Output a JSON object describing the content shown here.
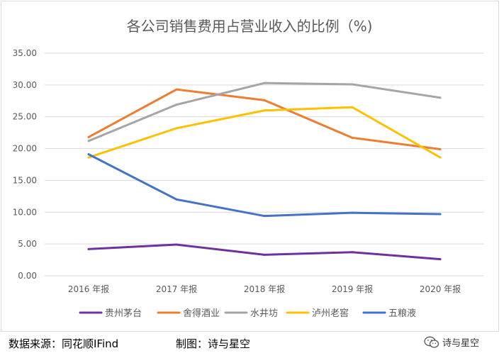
{
  "chart_data": {
    "type": "line",
    "title": "各公司销售费用占营业收入的比例（%)",
    "xlabel": "",
    "ylabel": "",
    "categories": [
      "2016 年报",
      "2017 年报",
      "2018 年报",
      "2019 年报",
      "2020 年报"
    ],
    "ylim": [
      0,
      35
    ],
    "yticks": [
      "0.00",
      "5.00",
      "10.00",
      "15.00",
      "20.00",
      "25.00",
      "30.00",
      "35.00"
    ],
    "grid": true,
    "legend_position": "bottom",
    "series": [
      {
        "name": "贵州茅台",
        "color": "#7030a0",
        "values": [
          4.2,
          4.9,
          3.3,
          3.7,
          2.6
        ]
      },
      {
        "name": "舍得酒业",
        "color": "#ed7d31",
        "values": [
          21.8,
          29.3,
          27.6,
          21.7,
          19.9
        ]
      },
      {
        "name": "水井坊",
        "color": "#a5a5a5",
        "values": [
          21.2,
          26.9,
          30.3,
          30.1,
          28.0
        ]
      },
      {
        "name": "泸州老窖",
        "color": "#ffc000",
        "values": [
          18.6,
          23.2,
          26.0,
          26.5,
          18.6
        ]
      },
      {
        "name": "五粮液",
        "color": "#4472c4",
        "values": [
          19.1,
          12.0,
          9.4,
          9.9,
          9.7
        ]
      }
    ]
  },
  "footer": {
    "source": "数据来源：同花顺IFind",
    "author": "制图：诗与星空"
  },
  "brand": {
    "name": "诗与星空",
    "icon": "wechat-icon"
  }
}
